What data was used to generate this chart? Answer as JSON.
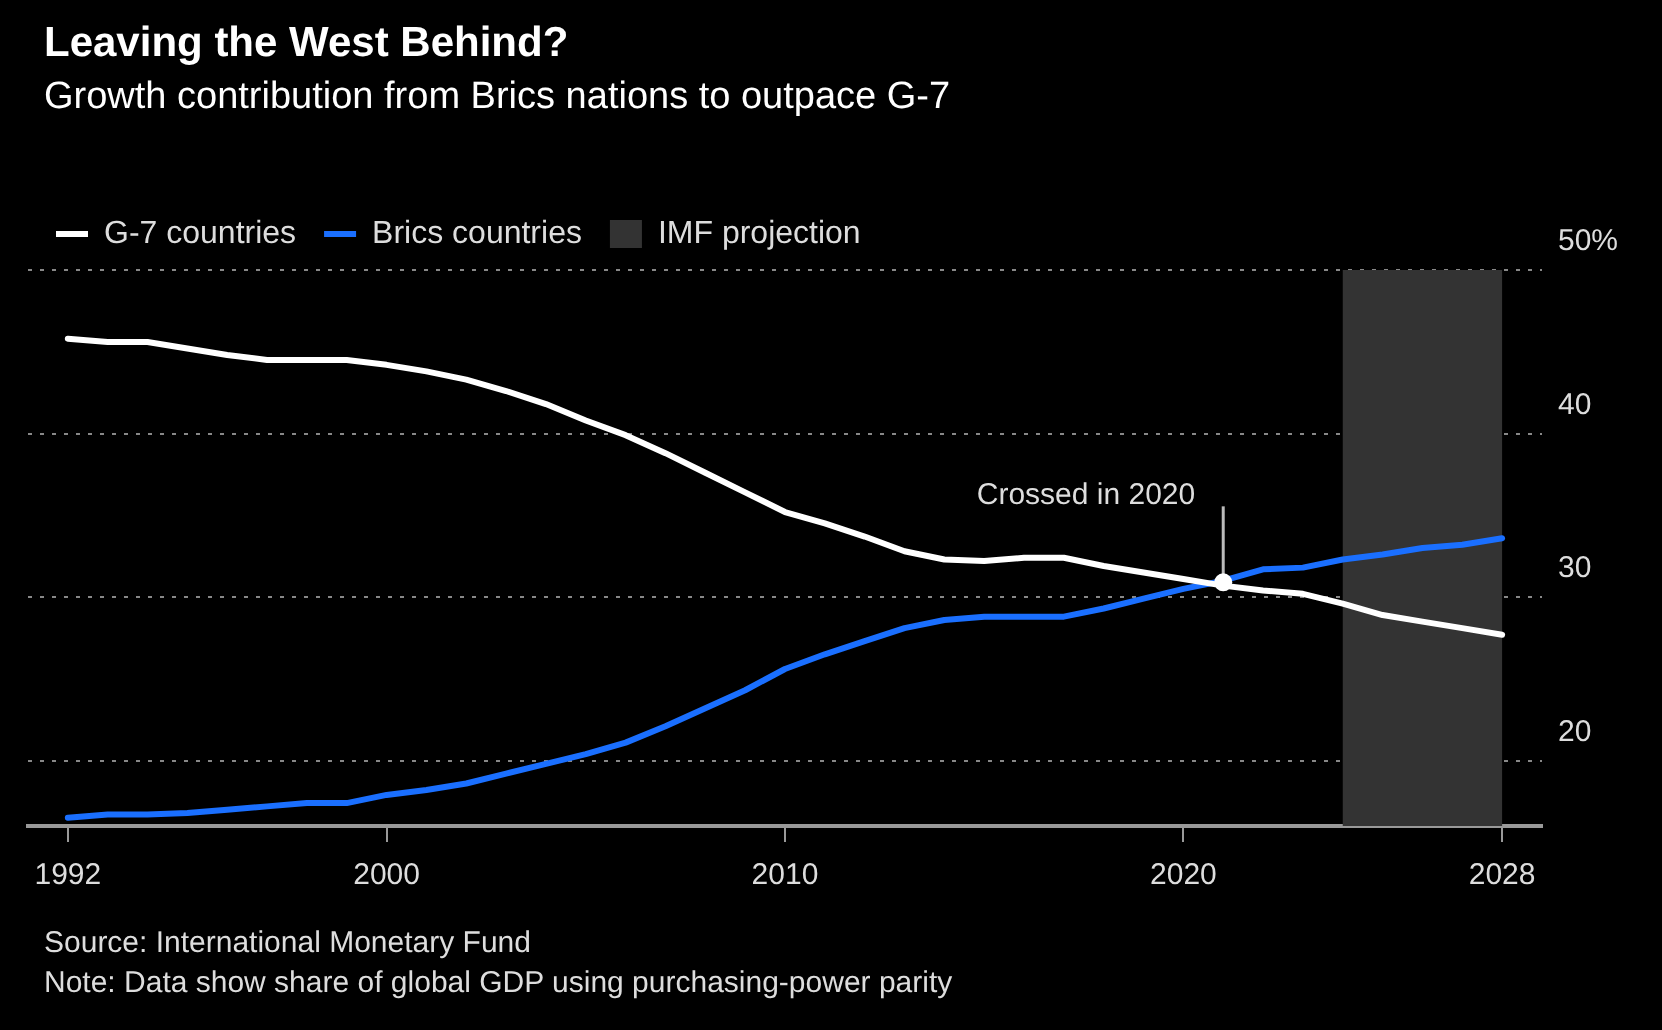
{
  "chart_data": {
    "type": "line",
    "title": "Leaving the West Behind?",
    "subtitle": "Growth contribution from Brics nations to outpace G-7",
    "x": [
      1992,
      1993,
      1994,
      1995,
      1996,
      1997,
      1998,
      1999,
      2000,
      2001,
      2002,
      2003,
      2004,
      2005,
      2006,
      2007,
      2008,
      2009,
      2010,
      2011,
      2012,
      2013,
      2014,
      2015,
      2016,
      2017,
      2018,
      2019,
      2020,
      2021,
      2022,
      2023,
      2024,
      2025,
      2026,
      2027,
      2028
    ],
    "series": [
      {
        "name": "G-7 countries",
        "color": "#ffffff",
        "values": [
          45.8,
          45.6,
          45.6,
          45.2,
          44.8,
          44.5,
          44.5,
          44.5,
          44.2,
          43.8,
          43.3,
          42.6,
          41.8,
          40.8,
          39.9,
          38.8,
          37.6,
          36.4,
          35.2,
          34.5,
          33.7,
          32.8,
          32.3,
          32.2,
          32.4,
          32.4,
          31.9,
          31.5,
          31.1,
          30.7,
          30.4,
          30.2,
          29.6,
          28.9,
          28.5,
          28.1,
          27.7
        ]
      },
      {
        "name": "Brics countries",
        "color": "#1a6fff",
        "values": [
          16.5,
          16.7,
          16.7,
          16.8,
          17.0,
          17.2,
          17.4,
          17.4,
          17.9,
          18.2,
          18.6,
          19.2,
          19.8,
          20.4,
          21.1,
          22.1,
          23.2,
          24.3,
          25.6,
          26.5,
          27.3,
          28.1,
          28.6,
          28.8,
          28.8,
          28.8,
          29.3,
          29.9,
          30.5,
          31.0,
          31.7,
          31.8,
          32.3,
          32.6,
          33.0,
          33.2,
          33.6
        ]
      }
    ],
    "xlim": [
      1991,
      2029
    ],
    "xticks": [
      1992,
      2000,
      2010,
      2020,
      2028
    ],
    "ylim": [
      16,
      50
    ],
    "yticks": [
      20,
      30,
      40,
      {
        "value": 50,
        "label": "50%"
      }
    ],
    "bands": [
      {
        "axis": "x",
        "from": 2024,
        "to": 2028,
        "label": "IMF projection",
        "color": "#333333"
      }
    ],
    "annotations": [
      {
        "text": "Crossed in 2020",
        "x": 2021,
        "y": 30.9
      },
      "Source: International Monetary Fund",
      "Note: Data show share of global GDP using purchasing-power parity"
    ],
    "grid": "y",
    "legend": "top left",
    "marker": "none",
    "line_style": "solid"
  }
}
